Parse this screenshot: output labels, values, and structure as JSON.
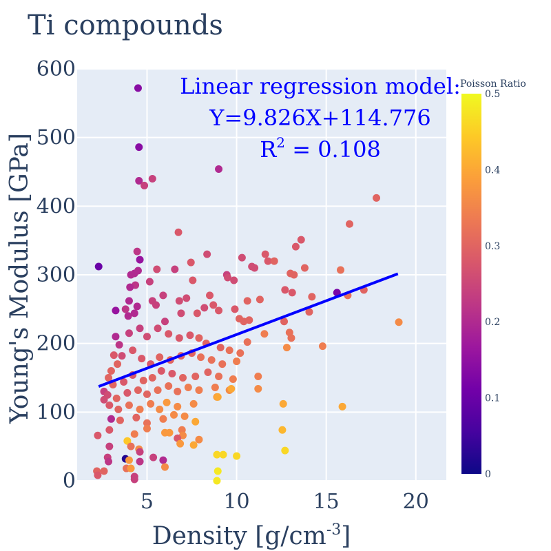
{
  "chart_data": {
    "type": "scatter",
    "title": "Ti compounds",
    "xlabel": "Density [g/cm",
    "xlabel_sup": "-3",
    "xlabel_end": "]",
    "ylabel": "Young's Modulus [GPa]",
    "xlim": [
      1.1,
      21.7
    ],
    "ylim": [
      0,
      600
    ],
    "xticks": [
      5,
      10,
      15,
      20
    ],
    "yticks": [
      0,
      100,
      200,
      300,
      400,
      500,
      600
    ],
    "xtick_labels": [
      "5",
      "10",
      "15",
      "20"
    ],
    "ytick_labels": [
      "0",
      "100",
      "200",
      "300",
      "400",
      "500",
      "600"
    ],
    "grid": true,
    "colorbar": {
      "title": "Poisson Ratio",
      "range": [
        0,
        0.5
      ],
      "ticks": [
        0,
        0.1,
        0.2,
        0.3,
        0.4,
        0.5
      ],
      "tick_labels": [
        "0",
        "0.1",
        "0.2",
        "0.3",
        "0.4",
        "0.5"
      ],
      "colorscale": "plasma"
    },
    "regression": {
      "label_line1": "Linear regression model:",
      "label_line2": "Y=9.826X+114.776",
      "label_r2_base": "R",
      "label_r2_sup": "2",
      "label_r2_rest": " = 0.108",
      "slope": 9.826,
      "intercept": 114.776,
      "x_range": [
        2.3,
        19.0
      ],
      "color": "#0000ff"
    },
    "points": [
      {
        "x": 4.5,
        "y": 572,
        "c": 0.14
      },
      {
        "x": 4.55,
        "y": 486,
        "c": 0.14
      },
      {
        "x": 4.55,
        "y": 437,
        "c": 0.2
      },
      {
        "x": 4.85,
        "y": 430,
        "c": 0.24
      },
      {
        "x": 5.3,
        "y": 440,
        "c": 0.24
      },
      {
        "x": 9.0,
        "y": 454,
        "c": 0.2
      },
      {
        "x": 2.3,
        "y": 312,
        "c": 0.1
      },
      {
        "x": 17.8,
        "y": 412,
        "c": 0.3
      },
      {
        "x": 16.3,
        "y": 374,
        "c": 0.3
      },
      {
        "x": 6.75,
        "y": 362,
        "c": 0.28
      },
      {
        "x": 13.6,
        "y": 351,
        "c": 0.28
      },
      {
        "x": 13.3,
        "y": 341,
        "c": 0.28
      },
      {
        "x": 4.45,
        "y": 334,
        "c": 0.22
      },
      {
        "x": 4.6,
        "y": 322,
        "c": 0.16
      },
      {
        "x": 7.45,
        "y": 318,
        "c": 0.28
      },
      {
        "x": 8.35,
        "y": 330,
        "c": 0.26
      },
      {
        "x": 10.3,
        "y": 325,
        "c": 0.26
      },
      {
        "x": 11.75,
        "y": 320,
        "c": 0.28
      },
      {
        "x": 11.6,
        "y": 330,
        "c": 0.28
      },
      {
        "x": 12.1,
        "y": 320,
        "c": 0.3
      },
      {
        "x": 13.8,
        "y": 310,
        "c": 0.3
      },
      {
        "x": 15.8,
        "y": 307,
        "c": 0.32
      },
      {
        "x": 10.85,
        "y": 312,
        "c": 0.26
      },
      {
        "x": 11.0,
        "y": 310,
        "c": 0.26
      },
      {
        "x": 6.55,
        "y": 308,
        "c": 0.24
      },
      {
        "x": 5.55,
        "y": 308,
        "c": 0.26
      },
      {
        "x": 4.1,
        "y": 300,
        "c": 0.2
      },
      {
        "x": 4.3,
        "y": 302,
        "c": 0.2
      },
      {
        "x": 4.5,
        "y": 306,
        "c": 0.2
      },
      {
        "x": 9.45,
        "y": 300,
        "c": 0.24
      },
      {
        "x": 9.5,
        "y": 296,
        "c": 0.26
      },
      {
        "x": 7.55,
        "y": 292,
        "c": 0.28
      },
      {
        "x": 9.85,
        "y": 292,
        "c": 0.26
      },
      {
        "x": 5.15,
        "y": 290,
        "c": 0.24
      },
      {
        "x": 4.35,
        "y": 285,
        "c": 0.22
      },
      {
        "x": 4.05,
        "y": 282,
        "c": 0.2
      },
      {
        "x": 13.0,
        "y": 302,
        "c": 0.3
      },
      {
        "x": 13.2,
        "y": 300,
        "c": 0.3
      },
      {
        "x": 12.7,
        "y": 278,
        "c": 0.28
      },
      {
        "x": 13.1,
        "y": 274,
        "c": 0.28
      },
      {
        "x": 15.6,
        "y": 274,
        "c": 0.12
      },
      {
        "x": 16.2,
        "y": 270,
        "c": 0.32
      },
      {
        "x": 17.1,
        "y": 278,
        "c": 0.3
      },
      {
        "x": 14.2,
        "y": 268,
        "c": 0.3
      },
      {
        "x": 11.3,
        "y": 264,
        "c": 0.3
      },
      {
        "x": 10.6,
        "y": 262,
        "c": 0.3
      },
      {
        "x": 9.9,
        "y": 250,
        "c": 0.28
      },
      {
        "x": 9.0,
        "y": 248,
        "c": 0.28
      },
      {
        "x": 8.2,
        "y": 252,
        "c": 0.26
      },
      {
        "x": 6.8,
        "y": 262,
        "c": 0.26
      },
      {
        "x": 7.2,
        "y": 266,
        "c": 0.26
      },
      {
        "x": 5.9,
        "y": 270,
        "c": 0.24
      },
      {
        "x": 5.3,
        "y": 262,
        "c": 0.24
      },
      {
        "x": 4.0,
        "y": 262,
        "c": 0.2
      },
      {
        "x": 4.45,
        "y": 254,
        "c": 0.2
      },
      {
        "x": 3.8,
        "y": 250,
        "c": 0.22
      },
      {
        "x": 3.25,
        "y": 248,
        "c": 0.16
      },
      {
        "x": 3.95,
        "y": 240,
        "c": 0.2
      },
      {
        "x": 4.3,
        "y": 244,
        "c": 0.2
      },
      {
        "x": 5.5,
        "y": 256,
        "c": 0.24
      },
      {
        "x": 6.0,
        "y": 232,
        "c": 0.24
      },
      {
        "x": 6.9,
        "y": 244,
        "c": 0.26
      },
      {
        "x": 7.8,
        "y": 244,
        "c": 0.28
      },
      {
        "x": 8.7,
        "y": 256,
        "c": 0.28
      },
      {
        "x": 8.5,
        "y": 270,
        "c": 0.28
      },
      {
        "x": 10.15,
        "y": 236,
        "c": 0.3
      },
      {
        "x": 10.4,
        "y": 232,
        "c": 0.3
      },
      {
        "x": 10.7,
        "y": 234,
        "c": 0.3
      },
      {
        "x": 12.65,
        "y": 232,
        "c": 0.3
      },
      {
        "x": 14.05,
        "y": 246,
        "c": 0.3
      },
      {
        "x": 12.95,
        "y": 216,
        "c": 0.32
      },
      {
        "x": 13.05,
        "y": 208,
        "c": 0.32
      },
      {
        "x": 11.55,
        "y": 214,
        "c": 0.34
      },
      {
        "x": 14.8,
        "y": 196,
        "c": 0.34
      },
      {
        "x": 19.05,
        "y": 231,
        "c": 0.36
      },
      {
        "x": 12.8,
        "y": 194,
        "c": 0.36
      },
      {
        "x": 10.6,
        "y": 202,
        "c": 0.32
      },
      {
        "x": 10.2,
        "y": 186,
        "c": 0.32
      },
      {
        "x": 9.6,
        "y": 190,
        "c": 0.32
      },
      {
        "x": 9.1,
        "y": 194,
        "c": 0.3
      },
      {
        "x": 8.3,
        "y": 200,
        "c": 0.3
      },
      {
        "x": 7.9,
        "y": 208,
        "c": 0.3
      },
      {
        "x": 7.4,
        "y": 212,
        "c": 0.28
      },
      {
        "x": 6.8,
        "y": 208,
        "c": 0.28
      },
      {
        "x": 6.2,
        "y": 214,
        "c": 0.28
      },
      {
        "x": 5.6,
        "y": 222,
        "c": 0.26
      },
      {
        "x": 5.0,
        "y": 210,
        "c": 0.26
      },
      {
        "x": 4.6,
        "y": 222,
        "c": 0.24
      },
      {
        "x": 4.0,
        "y": 215,
        "c": 0.24
      },
      {
        "x": 3.45,
        "y": 198,
        "c": 0.22
      },
      {
        "x": 3.25,
        "y": 210,
        "c": 0.2
      },
      {
        "x": 3.6,
        "y": 182,
        "c": 0.26
      },
      {
        "x": 3.15,
        "y": 183,
        "c": 0.28
      },
      {
        "x": 3.35,
        "y": 170,
        "c": 0.3
      },
      {
        "x": 3.0,
        "y": 160,
        "c": 0.3
      },
      {
        "x": 2.85,
        "y": 150,
        "c": 0.3
      },
      {
        "x": 4.2,
        "y": 190,
        "c": 0.28
      },
      {
        "x": 4.7,
        "y": 178,
        "c": 0.28
      },
      {
        "x": 5.2,
        "y": 170,
        "c": 0.28
      },
      {
        "x": 5.7,
        "y": 180,
        "c": 0.3
      },
      {
        "x": 6.3,
        "y": 176,
        "c": 0.3
      },
      {
        "x": 6.9,
        "y": 182,
        "c": 0.3
      },
      {
        "x": 7.5,
        "y": 186,
        "c": 0.3
      },
      {
        "x": 8.0,
        "y": 180,
        "c": 0.32
      },
      {
        "x": 8.6,
        "y": 176,
        "c": 0.32
      },
      {
        "x": 9.2,
        "y": 170,
        "c": 0.32
      },
      {
        "x": 10.0,
        "y": 174,
        "c": 0.34
      },
      {
        "x": 11.2,
        "y": 152,
        "c": 0.34
      },
      {
        "x": 9.8,
        "y": 148,
        "c": 0.34
      },
      {
        "x": 9.0,
        "y": 152,
        "c": 0.32
      },
      {
        "x": 8.4,
        "y": 158,
        "c": 0.3
      },
      {
        "x": 7.7,
        "y": 152,
        "c": 0.3
      },
      {
        "x": 7.0,
        "y": 150,
        "c": 0.3
      },
      {
        "x": 6.4,
        "y": 156,
        "c": 0.28
      },
      {
        "x": 5.8,
        "y": 160,
        "c": 0.28
      },
      {
        "x": 5.3,
        "y": 150,
        "c": 0.3
      },
      {
        "x": 4.8,
        "y": 146,
        "c": 0.3
      },
      {
        "x": 4.2,
        "y": 154,
        "c": 0.28
      },
      {
        "x": 3.7,
        "y": 144,
        "c": 0.28
      },
      {
        "x": 3.1,
        "y": 140,
        "c": 0.3
      },
      {
        "x": 2.6,
        "y": 130,
        "c": 0.24
      },
      {
        "x": 2.8,
        "y": 125,
        "c": 0.26
      },
      {
        "x": 3.3,
        "y": 120,
        "c": 0.3
      },
      {
        "x": 3.9,
        "y": 128,
        "c": 0.28
      },
      {
        "x": 4.5,
        "y": 132,
        "c": 0.3
      },
      {
        "x": 5.0,
        "y": 126,
        "c": 0.3
      },
      {
        "x": 5.6,
        "y": 132,
        "c": 0.32
      },
      {
        "x": 6.2,
        "y": 138,
        "c": 0.32
      },
      {
        "x": 6.7,
        "y": 130,
        "c": 0.32
      },
      {
        "x": 7.3,
        "y": 136,
        "c": 0.34
      },
      {
        "x": 7.9,
        "y": 132,
        "c": 0.34
      },
      {
        "x": 8.8,
        "y": 136,
        "c": 0.34
      },
      {
        "x": 9.6,
        "y": 132,
        "c": 0.36
      },
      {
        "x": 11.2,
        "y": 134,
        "c": 0.36
      },
      {
        "x": 8.9,
        "y": 122,
        "c": 0.38
      },
      {
        "x": 7.6,
        "y": 112,
        "c": 0.36
      },
      {
        "x": 6.7,
        "y": 108,
        "c": 0.36
      },
      {
        "x": 6.1,
        "y": 114,
        "c": 0.38
      },
      {
        "x": 5.7,
        "y": 104,
        "c": 0.36
      },
      {
        "x": 5.2,
        "y": 112,
        "c": 0.34
      },
      {
        "x": 4.6,
        "y": 104,
        "c": 0.34
      },
      {
        "x": 4.0,
        "y": 110,
        "c": 0.32
      },
      {
        "x": 3.4,
        "y": 104,
        "c": 0.3
      },
      {
        "x": 2.9,
        "y": 110,
        "c": 0.28
      },
      {
        "x": 2.6,
        "y": 118,
        "c": 0.26
      },
      {
        "x": 3.0,
        "y": 90,
        "c": 0.2
      },
      {
        "x": 3.5,
        "y": 88,
        "c": 0.3
      },
      {
        "x": 4.4,
        "y": 92,
        "c": 0.3
      },
      {
        "x": 5.0,
        "y": 84,
        "c": 0.32
      },
      {
        "x": 5.9,
        "y": 90,
        "c": 0.34
      },
      {
        "x": 6.5,
        "y": 96,
        "c": 0.36
      },
      {
        "x": 7.1,
        "y": 94,
        "c": 0.36
      },
      {
        "x": 7.7,
        "y": 86,
        "c": 0.4
      },
      {
        "x": 6.0,
        "y": 70,
        "c": 0.38
      },
      {
        "x": 6.25,
        "y": 70,
        "c": 0.38
      },
      {
        "x": 6.95,
        "y": 74,
        "c": 0.34
      },
      {
        "x": 7.0,
        "y": 66,
        "c": 0.36
      },
      {
        "x": 6.7,
        "y": 62,
        "c": 0.28
      },
      {
        "x": 7.9,
        "y": 60,
        "c": 0.36
      },
      {
        "x": 7.6,
        "y": 52,
        "c": 0.4
      },
      {
        "x": 6.85,
        "y": 54,
        "c": 0.38
      },
      {
        "x": 5.0,
        "y": 76,
        "c": 0.34
      },
      {
        "x": 4.3,
        "y": 68,
        "c": 0.34
      },
      {
        "x": 3.9,
        "y": 58,
        "c": 0.44
      },
      {
        "x": 4.1,
        "y": 50,
        "c": 0.32
      },
      {
        "x": 4.55,
        "y": 46,
        "c": 0.36
      },
      {
        "x": 4.6,
        "y": 42,
        "c": 0.24
      },
      {
        "x": 2.9,
        "y": 50,
        "c": 0.24
      },
      {
        "x": 2.25,
        "y": 66,
        "c": 0.28
      },
      {
        "x": 2.9,
        "y": 74,
        "c": 0.28
      },
      {
        "x": 2.8,
        "y": 34,
        "c": 0.24
      },
      {
        "x": 2.85,
        "y": 28,
        "c": 0.22
      },
      {
        "x": 3.8,
        "y": 32,
        "c": 0.02
      },
      {
        "x": 4.0,
        "y": 30,
        "c": 0.38
      },
      {
        "x": 4.6,
        "y": 28,
        "c": 0.22
      },
      {
        "x": 5.35,
        "y": 34,
        "c": 0.24
      },
      {
        "x": 5.9,
        "y": 30,
        "c": 0.2
      },
      {
        "x": 6.0,
        "y": 20,
        "c": 0.36
      },
      {
        "x": 3.85,
        "y": 18,
        "c": 0.32
      },
      {
        "x": 4.1,
        "y": 18,
        "c": 0.38
      },
      {
        "x": 2.6,
        "y": 14,
        "c": 0.3
      },
      {
        "x": 2.2,
        "y": 14,
        "c": 0.3
      },
      {
        "x": 2.25,
        "y": 8,
        "c": 0.28
      },
      {
        "x": 4.3,
        "y": 6,
        "c": 0.24
      },
      {
        "x": 4.3,
        "y": 2,
        "c": 0.24
      },
      {
        "x": 8.9,
        "y": 38,
        "c": 0.46
      },
      {
        "x": 9.25,
        "y": 38,
        "c": 0.46
      },
      {
        "x": 10.0,
        "y": 36,
        "c": 0.46
      },
      {
        "x": 8.95,
        "y": 14,
        "c": 0.48
      },
      {
        "x": 8.9,
        "y": 0,
        "c": 0.48
      },
      {
        "x": 12.7,
        "y": 44,
        "c": 0.46
      },
      {
        "x": 12.55,
        "y": 74,
        "c": 0.42
      },
      {
        "x": 12.6,
        "y": 112,
        "c": 0.4
      },
      {
        "x": 15.9,
        "y": 108,
        "c": 0.4
      },
      {
        "x": 8.95,
        "y": 122,
        "c": 0.4
      },
      {
        "x": 9.7,
        "y": 134,
        "c": 0.4
      }
    ]
  }
}
